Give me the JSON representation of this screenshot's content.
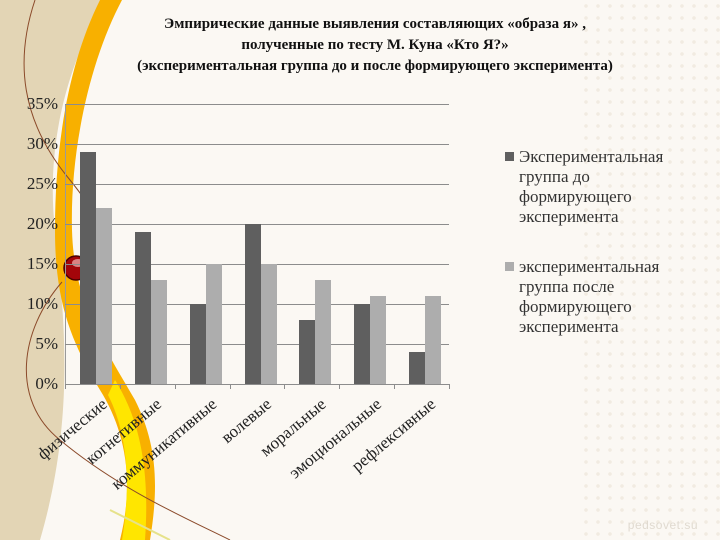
{
  "title": {
    "line1": "Эмпирические данные выявления  составляющих «образа я» ,",
    "line2": "полученные по тесту М. Куна «Кто Я?»",
    "line3": "(экспериментальная группа  до и после формирующего эксперимента)"
  },
  "colors": {
    "series_before": "#5f5f5f",
    "series_after": "#adadad",
    "background": "#fbf8f3",
    "left_panel": "#e3d5b5",
    "swirl_orange": "#f7a800",
    "swirl_yellow": "#ffe600"
  },
  "yticks": [
    "35%",
    "30%",
    "25%",
    "20%",
    "15%",
    "10%",
    "5%",
    "0%"
  ],
  "categories": [
    "физические",
    "когнетивные",
    "коммуникативные",
    "волевые",
    "моральные",
    "эмоциональные",
    "рефлексивные"
  ],
  "legend": {
    "before": "Экспериментальная группа до формирующего эксперимента",
    "after": "экспериментальная группа после формирующего эксперимента"
  },
  "watermark": "pedsovet.su",
  "chart_data": {
    "type": "bar",
    "title": "Эмпирические данные выявления составляющих «образа я», полученные по тесту М. Куна «Кто Я?» (экспериментальная группа до и после формирующего эксперимента)",
    "categories": [
      "физические",
      "когнетивные",
      "коммуникативные",
      "волевые",
      "моральные",
      "эмоциональные",
      "рефлексивные"
    ],
    "series": [
      {
        "name": "Экспериментальная группа до формирующего эксперимента",
        "values": [
          29,
          19,
          10,
          20,
          8,
          10,
          4
        ]
      },
      {
        "name": "экспериментальная группа после формирующего эксперимента",
        "values": [
          22,
          13,
          15,
          15,
          13,
          11,
          11
        ]
      }
    ],
    "xlabel": "",
    "ylabel": "",
    "ylim": [
      0,
      35
    ],
    "yticks": [
      "0%",
      "5%",
      "10%",
      "15%",
      "20%",
      "25%",
      "30%",
      "35%"
    ],
    "unit": "%",
    "grid": true,
    "legend_position": "right"
  }
}
